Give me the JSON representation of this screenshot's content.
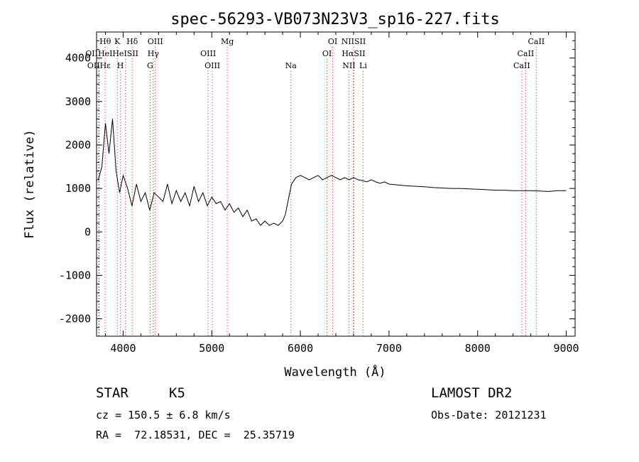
{
  "chart_data": {
    "type": "line",
    "title": "spec-56293-VB073N23V3_sp16-227.fits",
    "xlabel": "Wavelength (Å)",
    "ylabel": "Flux (relative)",
    "xlim": [
      3700,
      9100
    ],
    "ylim": [
      -2400,
      4600
    ],
    "xticks": [
      4000,
      5000,
      6000,
      7000,
      8000,
      9000
    ],
    "yticks": [
      -2000,
      -1000,
      0,
      1000,
      2000,
      3000,
      4000
    ],
    "grid": false,
    "line_color": "#000000",
    "marker_color": "#ff0000",
    "series": [
      {
        "x": [
          3720,
          3760,
          3800,
          3840,
          3880,
          3920,
          3960,
          4000,
          4050,
          4100,
          4150,
          4200,
          4250,
          4300,
          4350,
          4400,
          4450,
          4500,
          4550,
          4600,
          4650,
          4700,
          4750,
          4800,
          4850,
          4900,
          4950,
          5000,
          5050,
          5100,
          5150,
          5200,
          5250,
          5300,
          5350,
          5400,
          5450,
          5500,
          5550,
          5600,
          5650,
          5700,
          5750,
          5800,
          5830,
          5860,
          5900,
          5950,
          6000,
          6050,
          6100,
          6150,
          6200,
          6250,
          6300,
          6350,
          6400,
          6450,
          6500,
          6550,
          6600,
          6650,
          6700,
          6750,
          6800,
          6850,
          6900,
          6950,
          7000,
          7100,
          7200,
          7300,
          7400,
          7500,
          7600,
          7700,
          7800,
          7900,
          8000,
          8100,
          8200,
          8300,
          8400,
          8500,
          8600,
          8700,
          8800,
          8900,
          9000
        ],
        "y": [
          1200,
          1500,
          2500,
          1800,
          2600,
          1400,
          900,
          1300,
          1000,
          600,
          1100,
          700,
          900,
          500,
          900,
          800,
          700,
          1100,
          650,
          950,
          700,
          900,
          600,
          1050,
          700,
          900,
          600,
          800,
          650,
          700,
          500,
          650,
          450,
          550,
          350,
          500,
          250,
          300,
          150,
          250,
          150,
          200,
          150,
          250,
          400,
          700,
          1100,
          1250,
          1300,
          1250,
          1200,
          1250,
          1300,
          1200,
          1250,
          1300,
          1250,
          1200,
          1250,
          1200,
          1250,
          1200,
          1180,
          1150,
          1200,
          1150,
          1120,
          1150,
          1100,
          1080,
          1060,
          1050,
          1040,
          1020,
          1010,
          1000,
          1000,
          990,
          980,
          970,
          960,
          960,
          950,
          950,
          950,
          940,
          930,
          950,
          950
        ]
      }
    ],
    "line_markers": [
      {
        "label": "Hθ",
        "x": 3798,
        "row": 0
      },
      {
        "label": "K",
        "x": 3934,
        "row": 0
      },
      {
        "label": "Hδ",
        "x": 4102,
        "row": 0
      },
      {
        "label": "OIII",
        "x": 4363,
        "row": 0
      },
      {
        "label": "Mg",
        "x": 5175,
        "row": 0
      },
      {
        "label": "OI",
        "x": 6364,
        "row": 0
      },
      {
        "label": "NIISII",
        "x": 6600,
        "row": 0
      },
      {
        "label": "CaII",
        "x": 8662,
        "row": 0
      },
      {
        "label": "OIIHeI",
        "x": 3727,
        "row": 1
      },
      {
        "label": "HeISII",
        "x": 4026,
        "row": 1
      },
      {
        "label": "Hγ",
        "x": 4340,
        "row": 1
      },
      {
        "label": "OIII",
        "x": 4959,
        "row": 1
      },
      {
        "label": "OI",
        "x": 6300,
        "row": 1
      },
      {
        "label": "HαSII",
        "x": 6600,
        "row": 1
      },
      {
        "label": "CaII",
        "x": 8542,
        "row": 1
      },
      {
        "label": "OIIHε",
        "x": 3727,
        "row": 2
      },
      {
        "label": "H",
        "x": 3969,
        "row": 2
      },
      {
        "label": "G",
        "x": 4304,
        "row": 2
      },
      {
        "label": "OIII",
        "x": 5007,
        "row": 2
      },
      {
        "label": "Na",
        "x": 5893,
        "row": 2
      },
      {
        "label": "NII",
        "x": 6548,
        "row": 2
      },
      {
        "label": "Li",
        "x": 6708,
        "row": 2
      },
      {
        "label": "CaII",
        "x": 8498,
        "row": 2
      }
    ]
  },
  "info": {
    "class_label": "STAR",
    "subclass": "K5",
    "survey": "LAMOST DR2",
    "redshift": "cz = 150.5 ± 6.8 km/s",
    "obs_date": "Obs-Date: 20121231",
    "coords": "RA =  72.18531, DEC =  25.35719"
  }
}
